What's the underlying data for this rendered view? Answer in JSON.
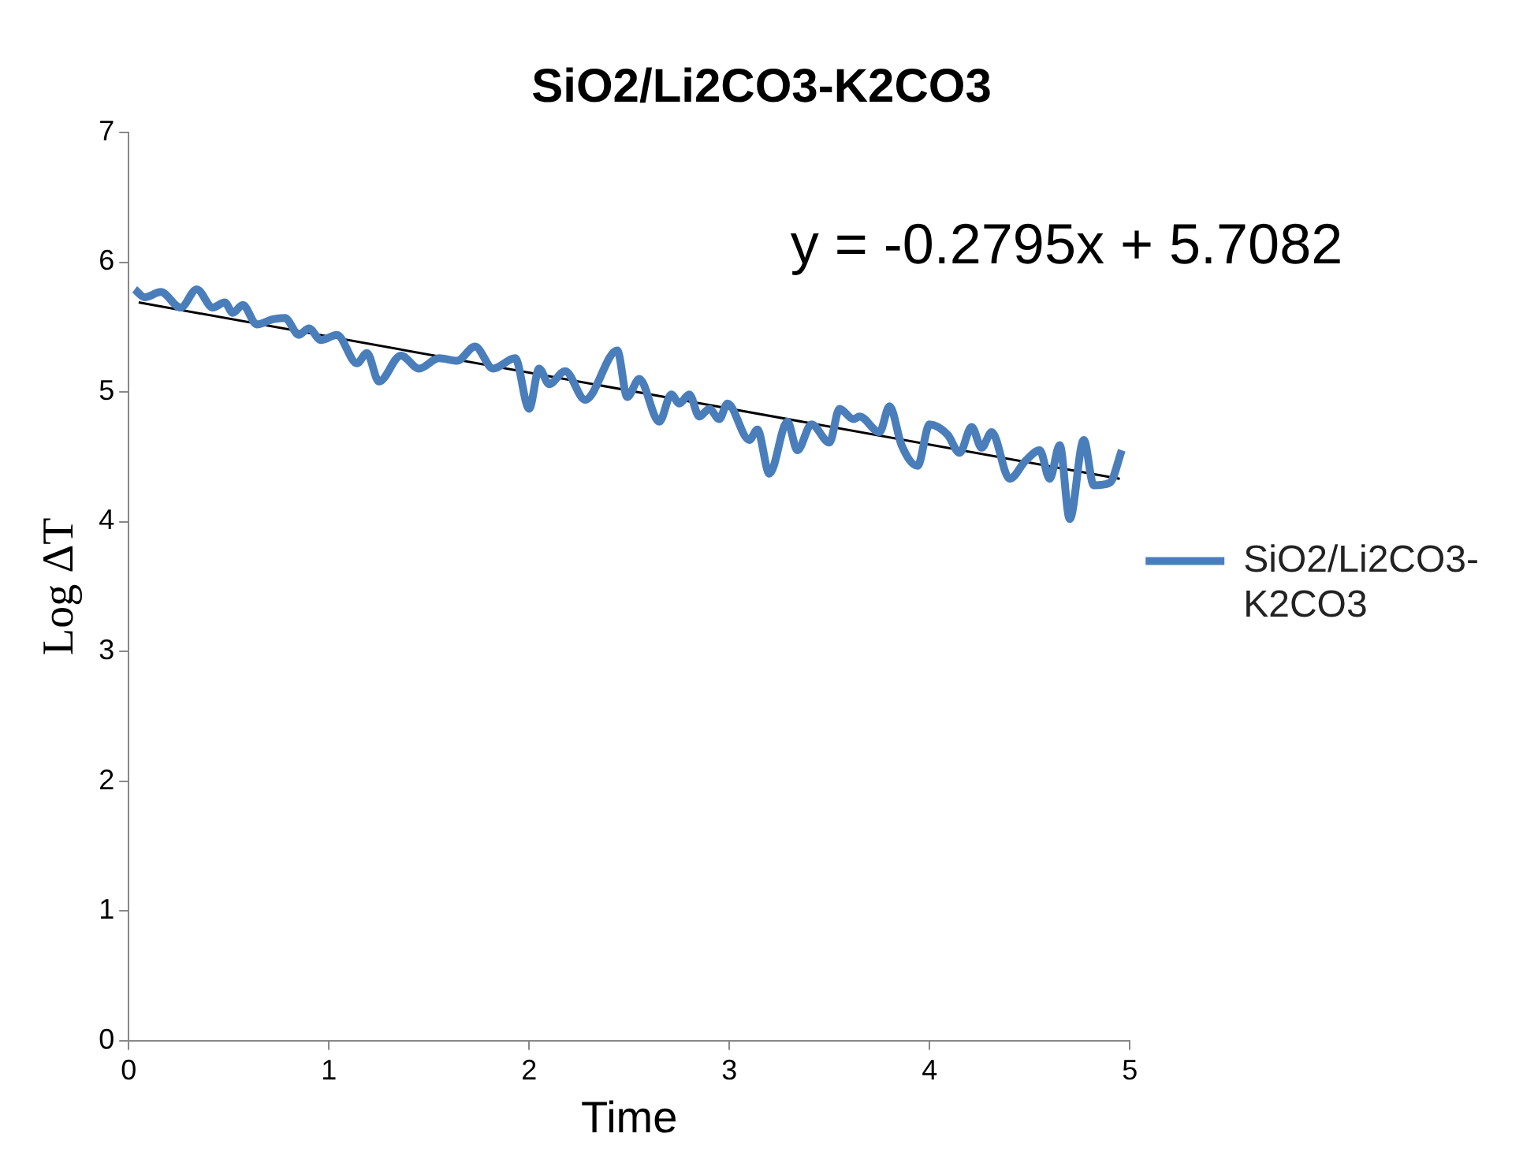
{
  "chart_data": {
    "type": "line",
    "title": "SiO2/Li2CO3-K2CO3",
    "xlabel": "Time",
    "ylabel": "Log ΔT",
    "xlim": [
      0,
      5
    ],
    "xticks": [
      0,
      1,
      2,
      3,
      4,
      5
    ],
    "ylim": [
      0,
      7
    ],
    "yticks": [
      0,
      1,
      2,
      3,
      4,
      5,
      6,
      7
    ],
    "grid": false,
    "legend": "right",
    "marker": "none",
    "line_style": "solid",
    "annotations": [
      "y = -0.2795x + 5.7082"
    ],
    "series": [
      {
        "name": "SiO2/Li2CO3-K2CO3",
        "color": "#4a7ebb",
        "x": [
          0.03,
          0.08,
          0.16,
          0.26,
          0.34,
          0.42,
          0.48,
          0.52,
          0.57,
          0.64,
          0.72,
          0.78,
          0.85,
          0.9,
          0.96,
          1.04,
          1.14,
          1.19,
          1.25,
          1.36,
          1.45,
          1.55,
          1.64,
          1.73,
          1.82,
          1.93,
          2.0,
          2.05,
          2.1,
          2.18,
          2.28,
          2.44,
          2.49,
          2.55,
          2.65,
          2.71,
          2.75,
          2.8,
          2.85,
          2.9,
          2.95,
          2.99,
          3.1,
          3.14,
          3.2,
          3.29,
          3.34,
          3.41,
          3.5,
          3.55,
          3.62,
          3.65,
          3.75,
          3.8,
          3.86,
          3.94,
          4.0,
          4.09,
          4.15,
          4.21,
          4.26,
          4.31,
          4.4,
          4.48,
          4.55,
          4.6,
          4.65,
          4.7,
          4.77,
          4.82,
          4.9,
          4.96
        ],
        "values": [
          5.79,
          5.73,
          5.77,
          5.65,
          5.79,
          5.65,
          5.69,
          5.61,
          5.67,
          5.52,
          5.56,
          5.57,
          5.44,
          5.49,
          5.4,
          5.44,
          5.22,
          5.3,
          5.08,
          5.28,
          5.18,
          5.26,
          5.24,
          5.35,
          5.18,
          5.26,
          4.87,
          5.18,
          5.06,
          5.16,
          4.94,
          5.32,
          4.96,
          5.1,
          4.77,
          4.98,
          4.91,
          4.98,
          4.81,
          4.87,
          4.79,
          4.91,
          4.63,
          4.71,
          4.37,
          4.77,
          4.55,
          4.75,
          4.61,
          4.87,
          4.79,
          4.81,
          4.69,
          4.89,
          4.59,
          4.43,
          4.75,
          4.67,
          4.53,
          4.73,
          4.57,
          4.69,
          4.33,
          4.47,
          4.55,
          4.33,
          4.59,
          4.02,
          4.63,
          4.28,
          4.3,
          4.55
        ]
      },
      {
        "type": "line",
        "color": "#000000",
        "x": [
          0.05,
          4.95
        ],
        "values": [
          5.69,
          4.33
        ]
      }
    ]
  }
}
